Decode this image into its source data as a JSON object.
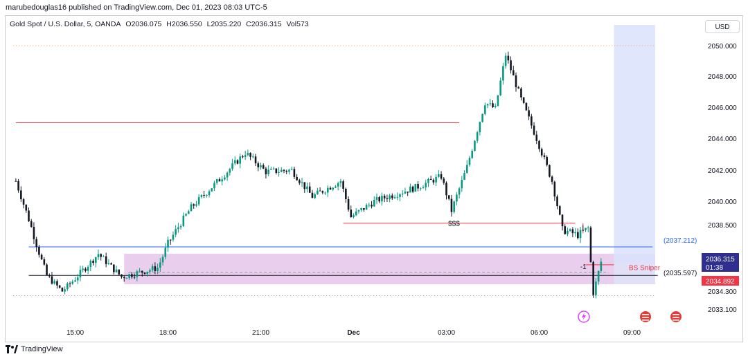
{
  "header": {
    "publisher": "marubedouglas16 published on TradingView.com, Dec 01, 2023 08:03 UTC-5",
    "currency": "USD"
  },
  "legend": {
    "symbol": "Gold Spot / U.S. Dollar, 5, OANDA",
    "open": "O2036.075",
    "high": "H2036.550",
    "low": "L2035.220",
    "close": "C2036.315",
    "volume": "Vol573"
  },
  "footer": {
    "brand": "TradingView",
    "logo_icon": "tradingview-logo-icon"
  },
  "colors": {
    "up": "#089981",
    "down": "#131722",
    "red_line": "#f23645",
    "blue_line": "#2962ff",
    "zone_purple": "#e1bee7",
    "zone_blue": "#dbe3fb",
    "zone_red": "#fbd5d5"
  },
  "chart_data": {
    "type": "candlestick",
    "title": "Gold Spot / U.S. Dollar, 5, OANDA",
    "xlabel": "",
    "ylabel": "",
    "ylim": [
      2032.7,
      2051.3
    ],
    "y_ticks": [
      "2050.000",
      "2048.000",
      "2046.000",
      "2044.000",
      "2042.000",
      "2040.000",
      "2038.500",
      "2034.300",
      "2033.100"
    ],
    "x_ticks": [
      "15:00",
      "18:00",
      "21:00",
      "Dec",
      "03:00",
      "06:00",
      "09:00"
    ],
    "grid": false,
    "last_price": {
      "label": "2036.315",
      "countdown": "01:38",
      "high_label": "2036.550",
      "low_label": "2034.892"
    },
    "levels": [
      {
        "name": "resistance-line",
        "price": 2045.0,
        "from": "13:05",
        "to": "03:25",
        "color": "red"
      },
      {
        "name": "sss-line",
        "price": 2038.6,
        "from": "23:40",
        "to": "07:10",
        "label": "$$$",
        "color": "red"
      },
      {
        "name": "blue-line",
        "price": 2037.2,
        "from": "13:30",
        "to": "09:40",
        "label": "(2037.212)",
        "color": "blue"
      },
      {
        "name": "dark-line",
        "price": 2035.4,
        "from": "13:30",
        "to": "09:50",
        "color": "dark"
      },
      {
        "name": "bs-line",
        "price": 2036.1,
        "from": "07:30",
        "to": "08:25",
        "color": "red"
      },
      {
        "name": "dotted-high",
        "price": 2050.0,
        "from": "13:00",
        "to": "09:45",
        "color": "dotted"
      },
      {
        "name": "dotted-low",
        "price": 2034.0,
        "from": "13:00",
        "to": "09:45",
        "color": "dotted"
      }
    ],
    "zones": [
      {
        "name": "purple-zone",
        "top": 2036.8,
        "bottom": 2034.8,
        "from": "16:35",
        "to": "09:45",
        "label": "(2035.597)",
        "mid": 2035.6
      },
      {
        "name": "red-zone",
        "top": 2036.2,
        "bottom": 2034.8,
        "from": "08:25",
        "to": "09:45",
        "label": "BS Sniper"
      },
      {
        "name": "blue-zone",
        "top": 2051.3,
        "bottom": 2034.8,
        "from": "08:25",
        "to": "09:45"
      }
    ],
    "annotations": [
      {
        "text": "-1",
        "time": "07:25",
        "price": 2036.0
      }
    ],
    "key_points": [
      {
        "time": "13:05",
        "price": 2041.3
      },
      {
        "time": "14:05",
        "price": 2035.4
      },
      {
        "time": "14:35",
        "price": 2034.3
      },
      {
        "time": "15:45",
        "price": 2036.8
      },
      {
        "time": "16:30",
        "price": 2035.3
      },
      {
        "time": "17:40",
        "price": 2035.9
      },
      {
        "time": "18:00",
        "price": 2037.4
      },
      {
        "time": "18:45",
        "price": 2039.6
      },
      {
        "time": "19:40",
        "price": 2041.4
      },
      {
        "time": "20:30",
        "price": 2043.1
      },
      {
        "time": "21:10",
        "price": 2041.9
      },
      {
        "time": "22:00",
        "price": 2042.0
      },
      {
        "time": "22:40",
        "price": 2040.3
      },
      {
        "time": "23:35",
        "price": 2041.3
      },
      {
        "time": "23:55",
        "price": 2039.0
      },
      {
        "time": "00:40",
        "price": 2040.0
      },
      {
        "time": "01:25",
        "price": 2040.5
      },
      {
        "time": "02:10",
        "price": 2041.0
      },
      {
        "time": "02:50",
        "price": 2041.6
      },
      {
        "time": "03:10",
        "price": 2039.4
      },
      {
        "time": "03:40",
        "price": 2042.2
      },
      {
        "time": "04:15",
        "price": 2046.3
      },
      {
        "time": "04:35",
        "price": 2045.9
      },
      {
        "time": "04:55",
        "price": 2049.4
      },
      {
        "time": "05:25",
        "price": 2046.5
      },
      {
        "time": "05:55",
        "price": 2044.0
      },
      {
        "time": "06:25",
        "price": 2041.3
      },
      {
        "time": "06:45",
        "price": 2038.2
      },
      {
        "time": "07:15",
        "price": 2037.9
      },
      {
        "time": "07:35",
        "price": 2038.3
      },
      {
        "time": "07:45",
        "price": 2034.2
      },
      {
        "time": "08:00",
        "price": 2036.3
      }
    ]
  }
}
